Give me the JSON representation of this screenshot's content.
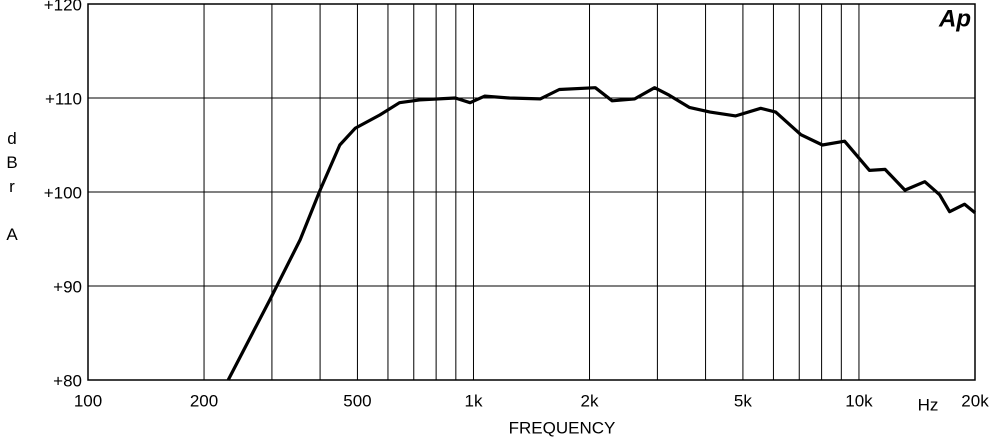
{
  "chart_data": {
    "type": "line",
    "xlabel": "FREQUENCY",
    "x_unit": "Hz",
    "ylabel": "dBr A",
    "logo": "Ap",
    "xlog": true,
    "grid": true,
    "color": "#000000",
    "xlim": [
      100,
      20000
    ],
    "ylim": [
      80,
      120
    ],
    "xticks": [
      100,
      200,
      500,
      {
        "value": 1000,
        "label": "1k"
      },
      {
        "value": 2000,
        "label": "2k"
      },
      {
        "value": 5000,
        "label": "5k"
      },
      {
        "value": 10000,
        "label": "10k"
      },
      {
        "value": 20000,
        "label": "20k"
      }
    ],
    "xminor": [
      300,
      400,
      600,
      700,
      800,
      900,
      3000,
      4000,
      6000,
      7000,
      8000,
      9000
    ],
    "yticks": [
      {
        "value": 80,
        "label": "+80"
      },
      {
        "value": 90,
        "label": "+90"
      },
      {
        "value": 100,
        "label": "+100"
      },
      {
        "value": 110,
        "label": "+110"
      },
      {
        "value": 120,
        "label": "+120"
      }
    ],
    "x": [
      231,
      296,
      355,
      400,
      450,
      494,
      572,
      643,
      725,
      897,
      980,
      1070,
      1240,
      1490,
      1670,
      2070,
      2290,
      2620,
      2950,
      3220,
      3630,
      4110,
      4790,
      5560,
      6080,
      7070,
      8040,
      9180,
      10650,
      11690,
      13160,
      14820,
      16200,
      17180,
      18800,
      20000
    ],
    "values": [
      80,
      88.5,
      94.9,
      100.2,
      105,
      106.8,
      108.2,
      109.5,
      109.8,
      110,
      109.5,
      110.2,
      110,
      109.9,
      110.9,
      111.1,
      109.7,
      109.9,
      111.1,
      110.3,
      109,
      108.5,
      108.1,
      108.9,
      108.5,
      106.1,
      105,
      105.4,
      102.3,
      102.4,
      100.2,
      101.1,
      99.7,
      97.9,
      98.7,
      97.8
    ]
  }
}
